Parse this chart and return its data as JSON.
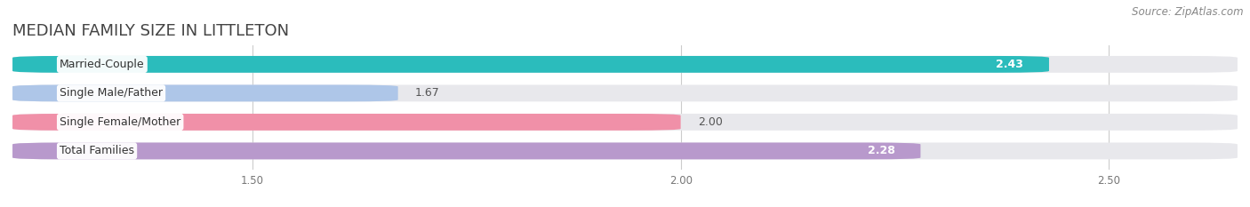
{
  "title": "MEDIAN FAMILY SIZE IN LITTLETON",
  "source": "Source: ZipAtlas.com",
  "categories": [
    "Married-Couple",
    "Single Male/Father",
    "Single Female/Mother",
    "Total Families"
  ],
  "values": [
    2.43,
    1.67,
    2.0,
    2.28
  ],
  "bar_colors": [
    "#2bbcbc",
    "#aec6e8",
    "#f090a8",
    "#b899cc"
  ],
  "value_inside": [
    true,
    false,
    false,
    true
  ],
  "value_colors_inside": [
    "#ffffff",
    "#555555",
    "#555555",
    "#ffffff"
  ],
  "xlim": [
    1.22,
    2.65
  ],
  "xticks": [
    1.5,
    2.0,
    2.5
  ],
  "background_color": "#ffffff",
  "bar_bg_color": "#e8e8ec",
  "title_fontsize": 13,
  "source_fontsize": 8.5,
  "label_fontsize": 9,
  "value_fontsize": 9,
  "bar_height": 0.58
}
